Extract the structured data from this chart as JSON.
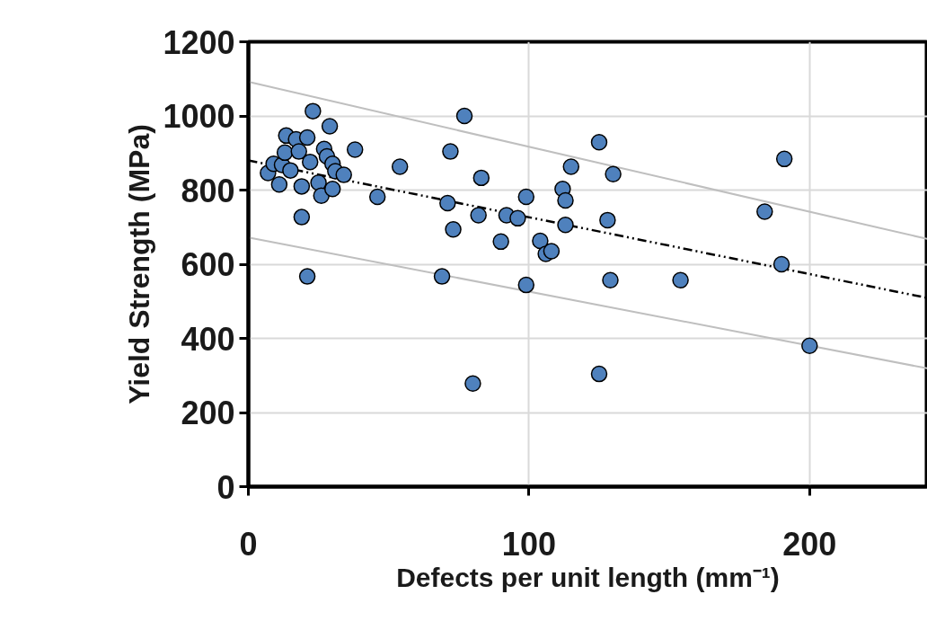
{
  "chart_data": {
    "type": "scatter",
    "xlabel": "Defects per unit length (mm⁻¹)",
    "ylabel": "Yield Strength (MPa)",
    "xlim": [
      0,
      242
    ],
    "ylim": [
      0,
      1200
    ],
    "xticks": [
      0,
      100,
      200
    ],
    "yticks": [
      0,
      200,
      400,
      600,
      800,
      1000,
      1200
    ],
    "grid": true,
    "marker": "circle",
    "series": [
      {
        "color": "#4f81bd",
        "x": [
          7,
          9,
          11,
          12,
          13.5,
          13,
          15,
          17,
          18,
          19,
          19,
          21,
          22,
          23,
          21,
          25,
          26,
          27,
          28,
          29,
          30,
          30,
          31,
          34,
          38,
          46,
          54,
          69,
          72,
          71,
          73,
          77,
          83,
          82,
          90,
          92,
          96,
          99,
          99,
          104,
          106,
          108,
          112,
          113,
          113,
          115,
          125,
          128,
          130,
          129,
          80,
          125,
          154,
          184,
          191,
          190,
          200
        ],
        "values": [
          846,
          871,
          815,
          868,
          947,
          901,
          853,
          937,
          904,
          810,
          727,
          942,
          876,
          1013,
          567,
          820,
          785,
          911,
          891,
          972,
          871,
          803,
          851,
          841,
          909,
          782,
          863,
          567,
          904,
          765,
          694,
          1000,
          833,
          732,
          661,
          732,
          724,
          782,
          544,
          663,
          628,
          635,
          803,
          772,
          706,
          863,
          929,
          719,
          843,
          557,
          278,
          304,
          557,
          742,
          884,
          600,
          380
        ]
      },
      {
        "type": "line",
        "marker": "none",
        "line_style": "dashed",
        "color": "#000000",
        "x": [
          0,
          242
        ],
        "values": [
          880,
          509
        ]
      },
      {
        "type": "line",
        "marker": "none",
        "line_style": "solid",
        "color": "#bfbfbf",
        "x": [
          0,
          242
        ],
        "values": [
          1092,
          668
        ]
      },
      {
        "type": "line",
        "marker": "none",
        "line_style": "solid",
        "color": "#bfbfbf",
        "x": [
          0,
          242
        ],
        "values": [
          672,
          319
        ]
      }
    ]
  }
}
